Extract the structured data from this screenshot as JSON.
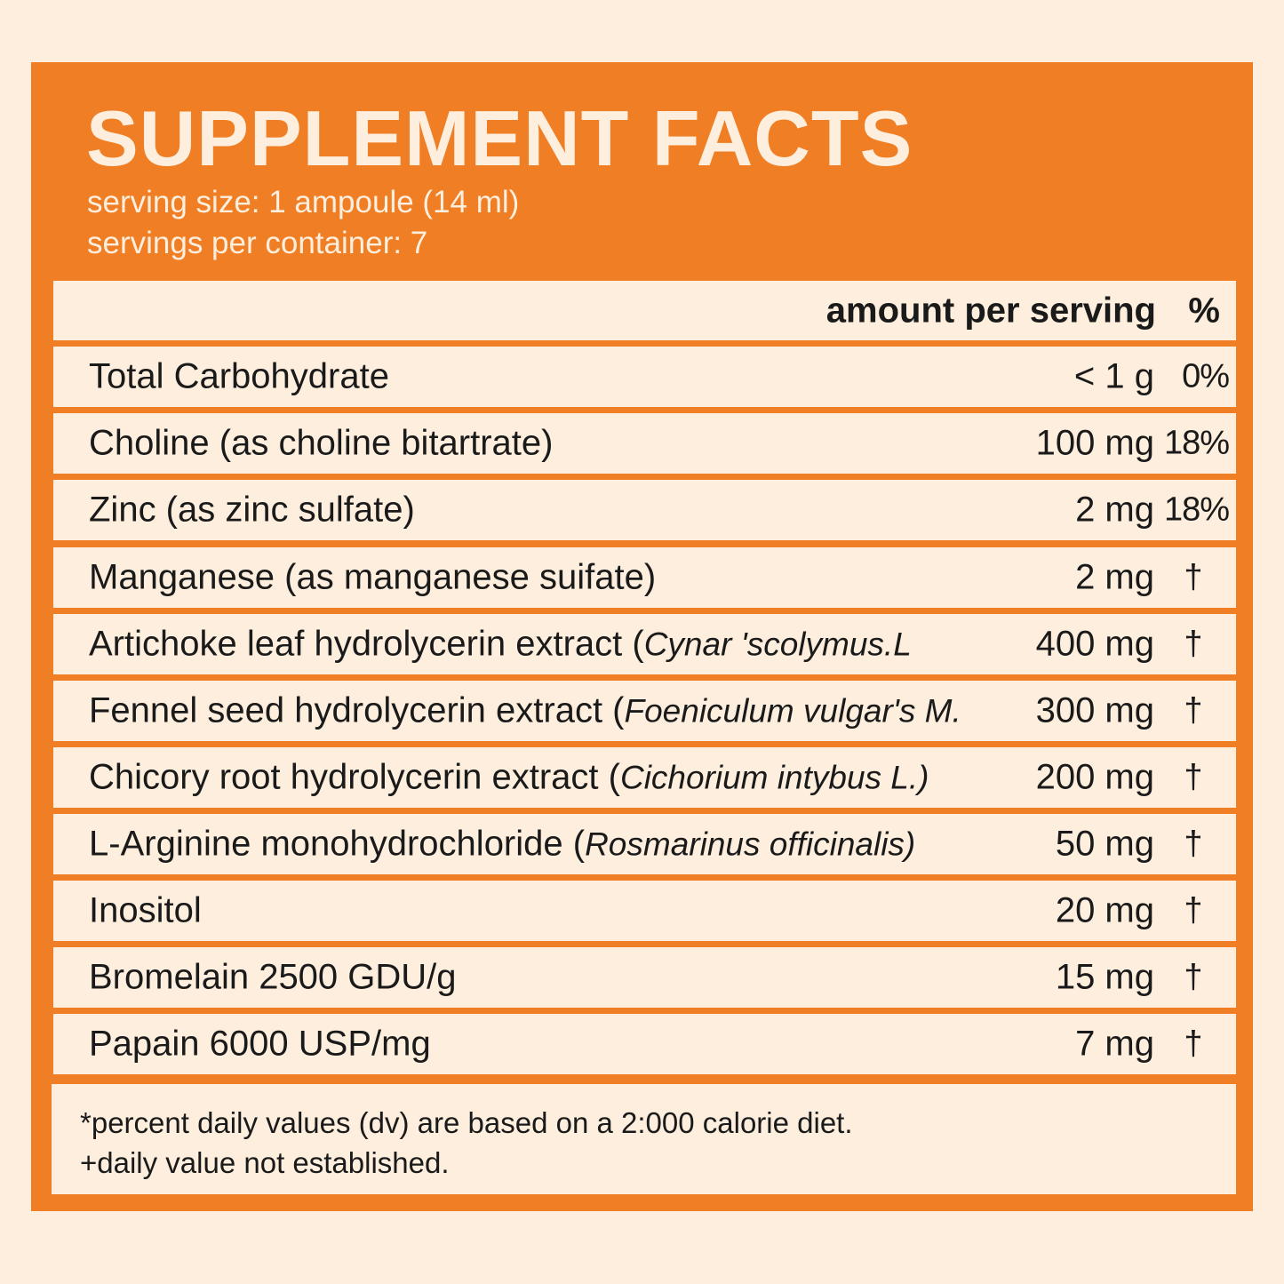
{
  "label": {
    "title": "SUPPLEMENT FACTS",
    "serving_size": "serving size: 1 ampoule (14 ml)",
    "servings_per_container": "servings per container: 7"
  },
  "table": {
    "header_amount": "amount per serving",
    "header_percent": "%",
    "rows": [
      {
        "name": "Total Carbohydrate",
        "latin": "",
        "amount": "< 1 g",
        "dv": "0%"
      },
      {
        "name": "Choline (as choline bitartrate)",
        "latin": "",
        "amount": "100 mg",
        "dv": "18%"
      },
      {
        "name": "Zinc (as zinc sulfate)",
        "latin": "",
        "amount": "2 mg",
        "dv": "18%"
      },
      {
        "name": "Manganese (as manganese suifate)",
        "latin": "",
        "amount": "2 mg",
        "dv": "†"
      },
      {
        "name": "Artichoke leaf hydrolycerin extract (",
        "latin": "Cynar 'scolymus.L",
        "amount": "400 mg",
        "dv": "†"
      },
      {
        "name": "Fennel seed hydrolycerin extract (",
        "latin": "Foeniculum vulgar's M.",
        "amount": "300 mg",
        "dv": "†"
      },
      {
        "name": "Chicory root hydrolycerin extract (",
        "latin": "Cichorium intybus L.)",
        "amount": "200 mg",
        "dv": "†"
      },
      {
        "name": "L-Arginine monohydrochloride (",
        "latin": "Rosmarinus officinalis)",
        "amount": "50 mg",
        "dv": "†"
      },
      {
        "name": "Inositol",
        "latin": "",
        "amount": "20 mg",
        "dv": "†"
      },
      {
        "name": "Bromelain 2500 GDU/g",
        "latin": "",
        "amount": "15 mg",
        "dv": "†"
      },
      {
        "name": "Papain 6000 USP/mg",
        "latin": "",
        "amount": "7 mg",
        "dv": "†"
      }
    ]
  },
  "footnotes": {
    "line1": "*percent daily values (dv) are based on a 2:000 calorie diet.",
    "line2": "+daily value not established."
  },
  "colors": {
    "background": "#fdeedd",
    "accent": "#ef7e24",
    "text": "#1a1a1a"
  }
}
